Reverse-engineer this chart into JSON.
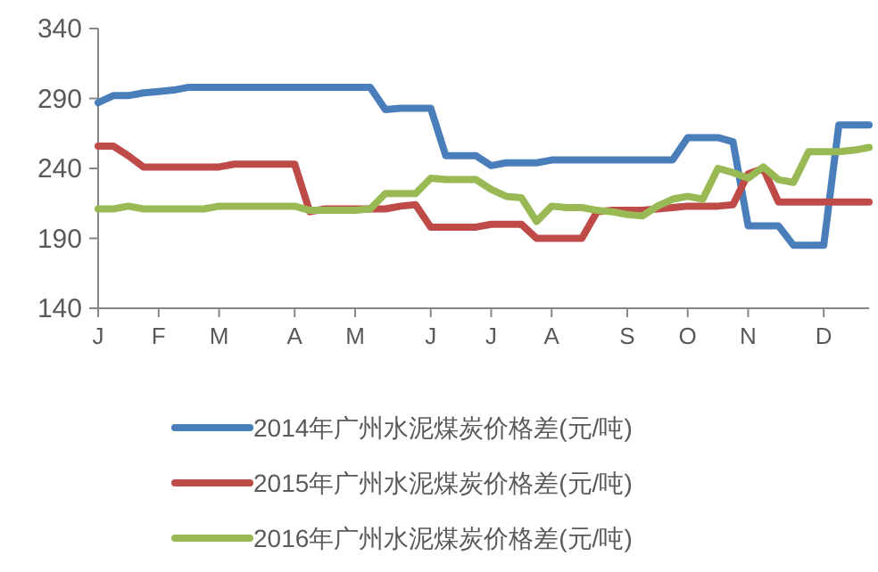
{
  "chart_data": {
    "type": "line",
    "categories": [
      "J",
      null,
      null,
      null,
      "F",
      null,
      null,
      null,
      "M",
      null,
      null,
      null,
      null,
      "A",
      null,
      null,
      null,
      "M",
      null,
      null,
      null,
      null,
      "J",
      null,
      null,
      null,
      "J",
      null,
      null,
      null,
      "A",
      null,
      null,
      null,
      null,
      "S",
      null,
      null,
      null,
      "O",
      null,
      null,
      null,
      "N",
      null,
      null,
      null,
      null,
      "D",
      null,
      null,
      null
    ],
    "ylim": [
      140,
      340
    ],
    "yticks": [
      140,
      190,
      240,
      290,
      340
    ],
    "legend": "bottom",
    "series": [
      {
        "name": "2014年广州水泥煤炭价格差(元/吨)",
        "color": "#4a7ebb",
        "values": [
          287,
          292,
          292,
          294,
          295,
          296,
          298,
          298,
          298,
          298,
          298,
          298,
          298,
          298,
          298,
          298,
          298,
          298,
          298,
          282,
          283,
          283,
          283,
          249,
          249,
          249,
          242,
          244,
          244,
          244,
          246,
          246,
          246,
          246,
          246,
          246,
          246,
          246,
          246,
          262,
          262,
          262,
          259,
          199,
          199,
          199,
          185,
          185,
          185,
          271,
          271,
          271
        ]
      },
      {
        "name": "2015年广州水泥煤炭价格差(元/吨)",
        "color": "#be4b48",
        "values": [
          256,
          256,
          249,
          241,
          241,
          241,
          241,
          241,
          241,
          243,
          243,
          243,
          243,
          243,
          209,
          211,
          211,
          211,
          211,
          211,
          213,
          214,
          198,
          198,
          198,
          198,
          200,
          200,
          200,
          190,
          190,
          190,
          190,
          209,
          210,
          210,
          210,
          211,
          212,
          213,
          213,
          213,
          214,
          236,
          240,
          216,
          216,
          216,
          216,
          216,
          216,
          216
        ]
      },
      {
        "name": "2016年广州水泥煤炭价格差(元/吨)",
        "color": "#98b954",
        "values": [
          211,
          211,
          213,
          211,
          211,
          211,
          211,
          211,
          213,
          213,
          213,
          213,
          213,
          213,
          210,
          210,
          210,
          210,
          211,
          222,
          222,
          222,
          233,
          232,
          232,
          232,
          225,
          220,
          219,
          202,
          213,
          212,
          212,
          210,
          209,
          207,
          206,
          213,
          218,
          220,
          218,
          240,
          237,
          233,
          241,
          232,
          230,
          252,
          252,
          252,
          253,
          255
        ]
      }
    ]
  }
}
